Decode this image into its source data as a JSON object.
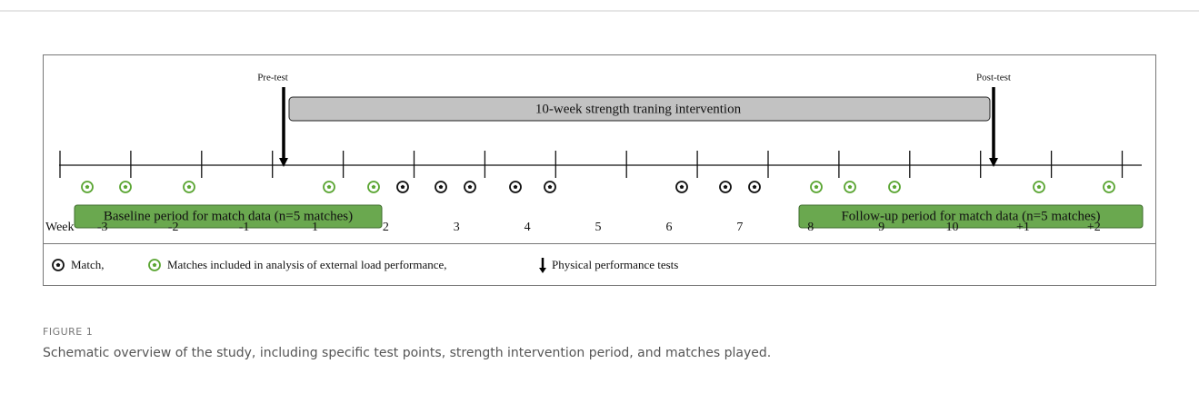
{
  "figure": {
    "labels": {
      "pre_test": "Pre-test",
      "post_test": "Post-test",
      "intervention": "10-week strength traning intervention",
      "baseline": "Baseline period for match data (n=5 matches)",
      "follow_up": "Follow-up period for match data (n=5 matches)"
    },
    "week_label": "Week",
    "weeks": [
      "-3",
      "-2",
      "-1",
      "1",
      "2",
      "3",
      "4",
      "5",
      "6",
      "7",
      "8",
      "9",
      "10",
      "+1",
      "+2"
    ],
    "legend": {
      "match": "Match,",
      "included": "Matches included in analysis of external load performance,",
      "tests": "Physical performance tests"
    },
    "caption": {
      "label": "FIGURE 1",
      "text": "Schematic overview of the study, including specific test points, strength intervention period, and matches played."
    }
  }
}
